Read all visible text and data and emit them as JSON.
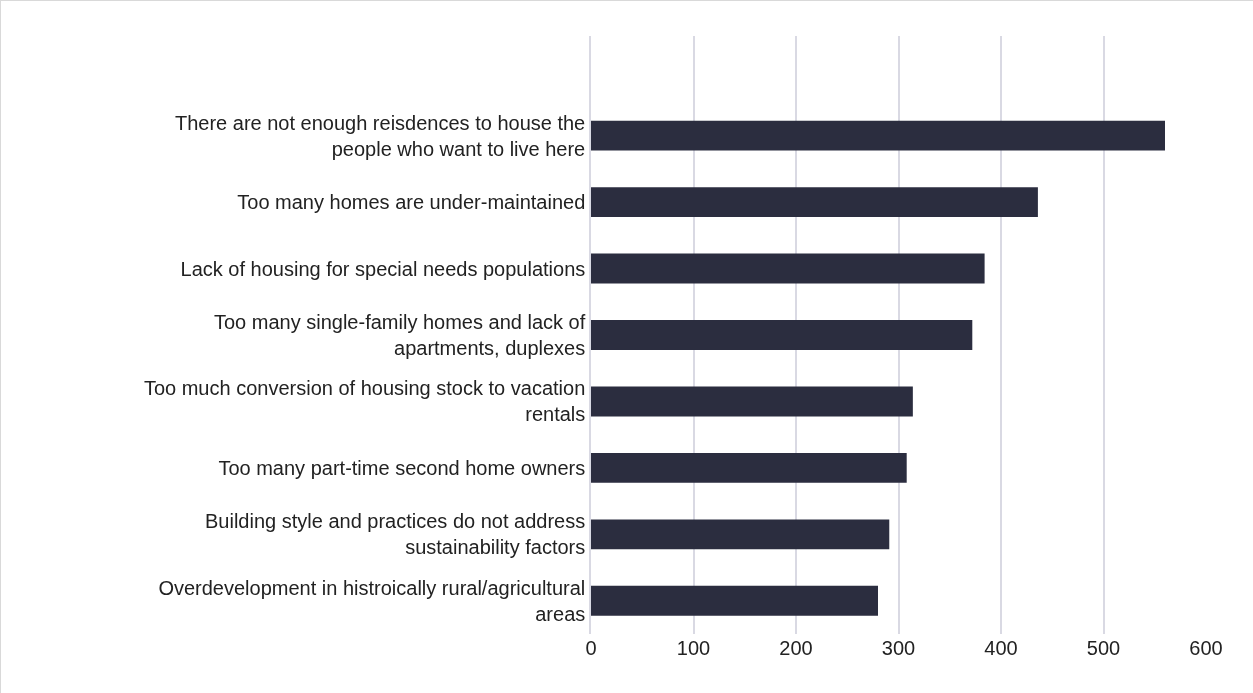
{
  "chart_data": {
    "type": "bar",
    "orientation": "horizontal",
    "categories": [
      null,
      "There are not enough reisdences to house the people who want to live here",
      "Too many homes are under-maintained",
      "Lack of housing for special needs populations",
      "Too many single-family homes and lack of apartments, duplexes",
      "Too much conversion of housing stock to vacation rentals",
      "Too many part-time second home owners",
      "Building style and practices do not address sustainability factors",
      "Overdevelopment in histroically rural/agricultural areas"
    ],
    "values": [
      null,
      560,
      436,
      384,
      372,
      314,
      308,
      291,
      280
    ],
    "color": "#2b2d3f",
    "xlim": [
      0,
      600
    ],
    "xticks": [
      0,
      100,
      200,
      300,
      400,
      500,
      600
    ],
    "grid": "x"
  }
}
